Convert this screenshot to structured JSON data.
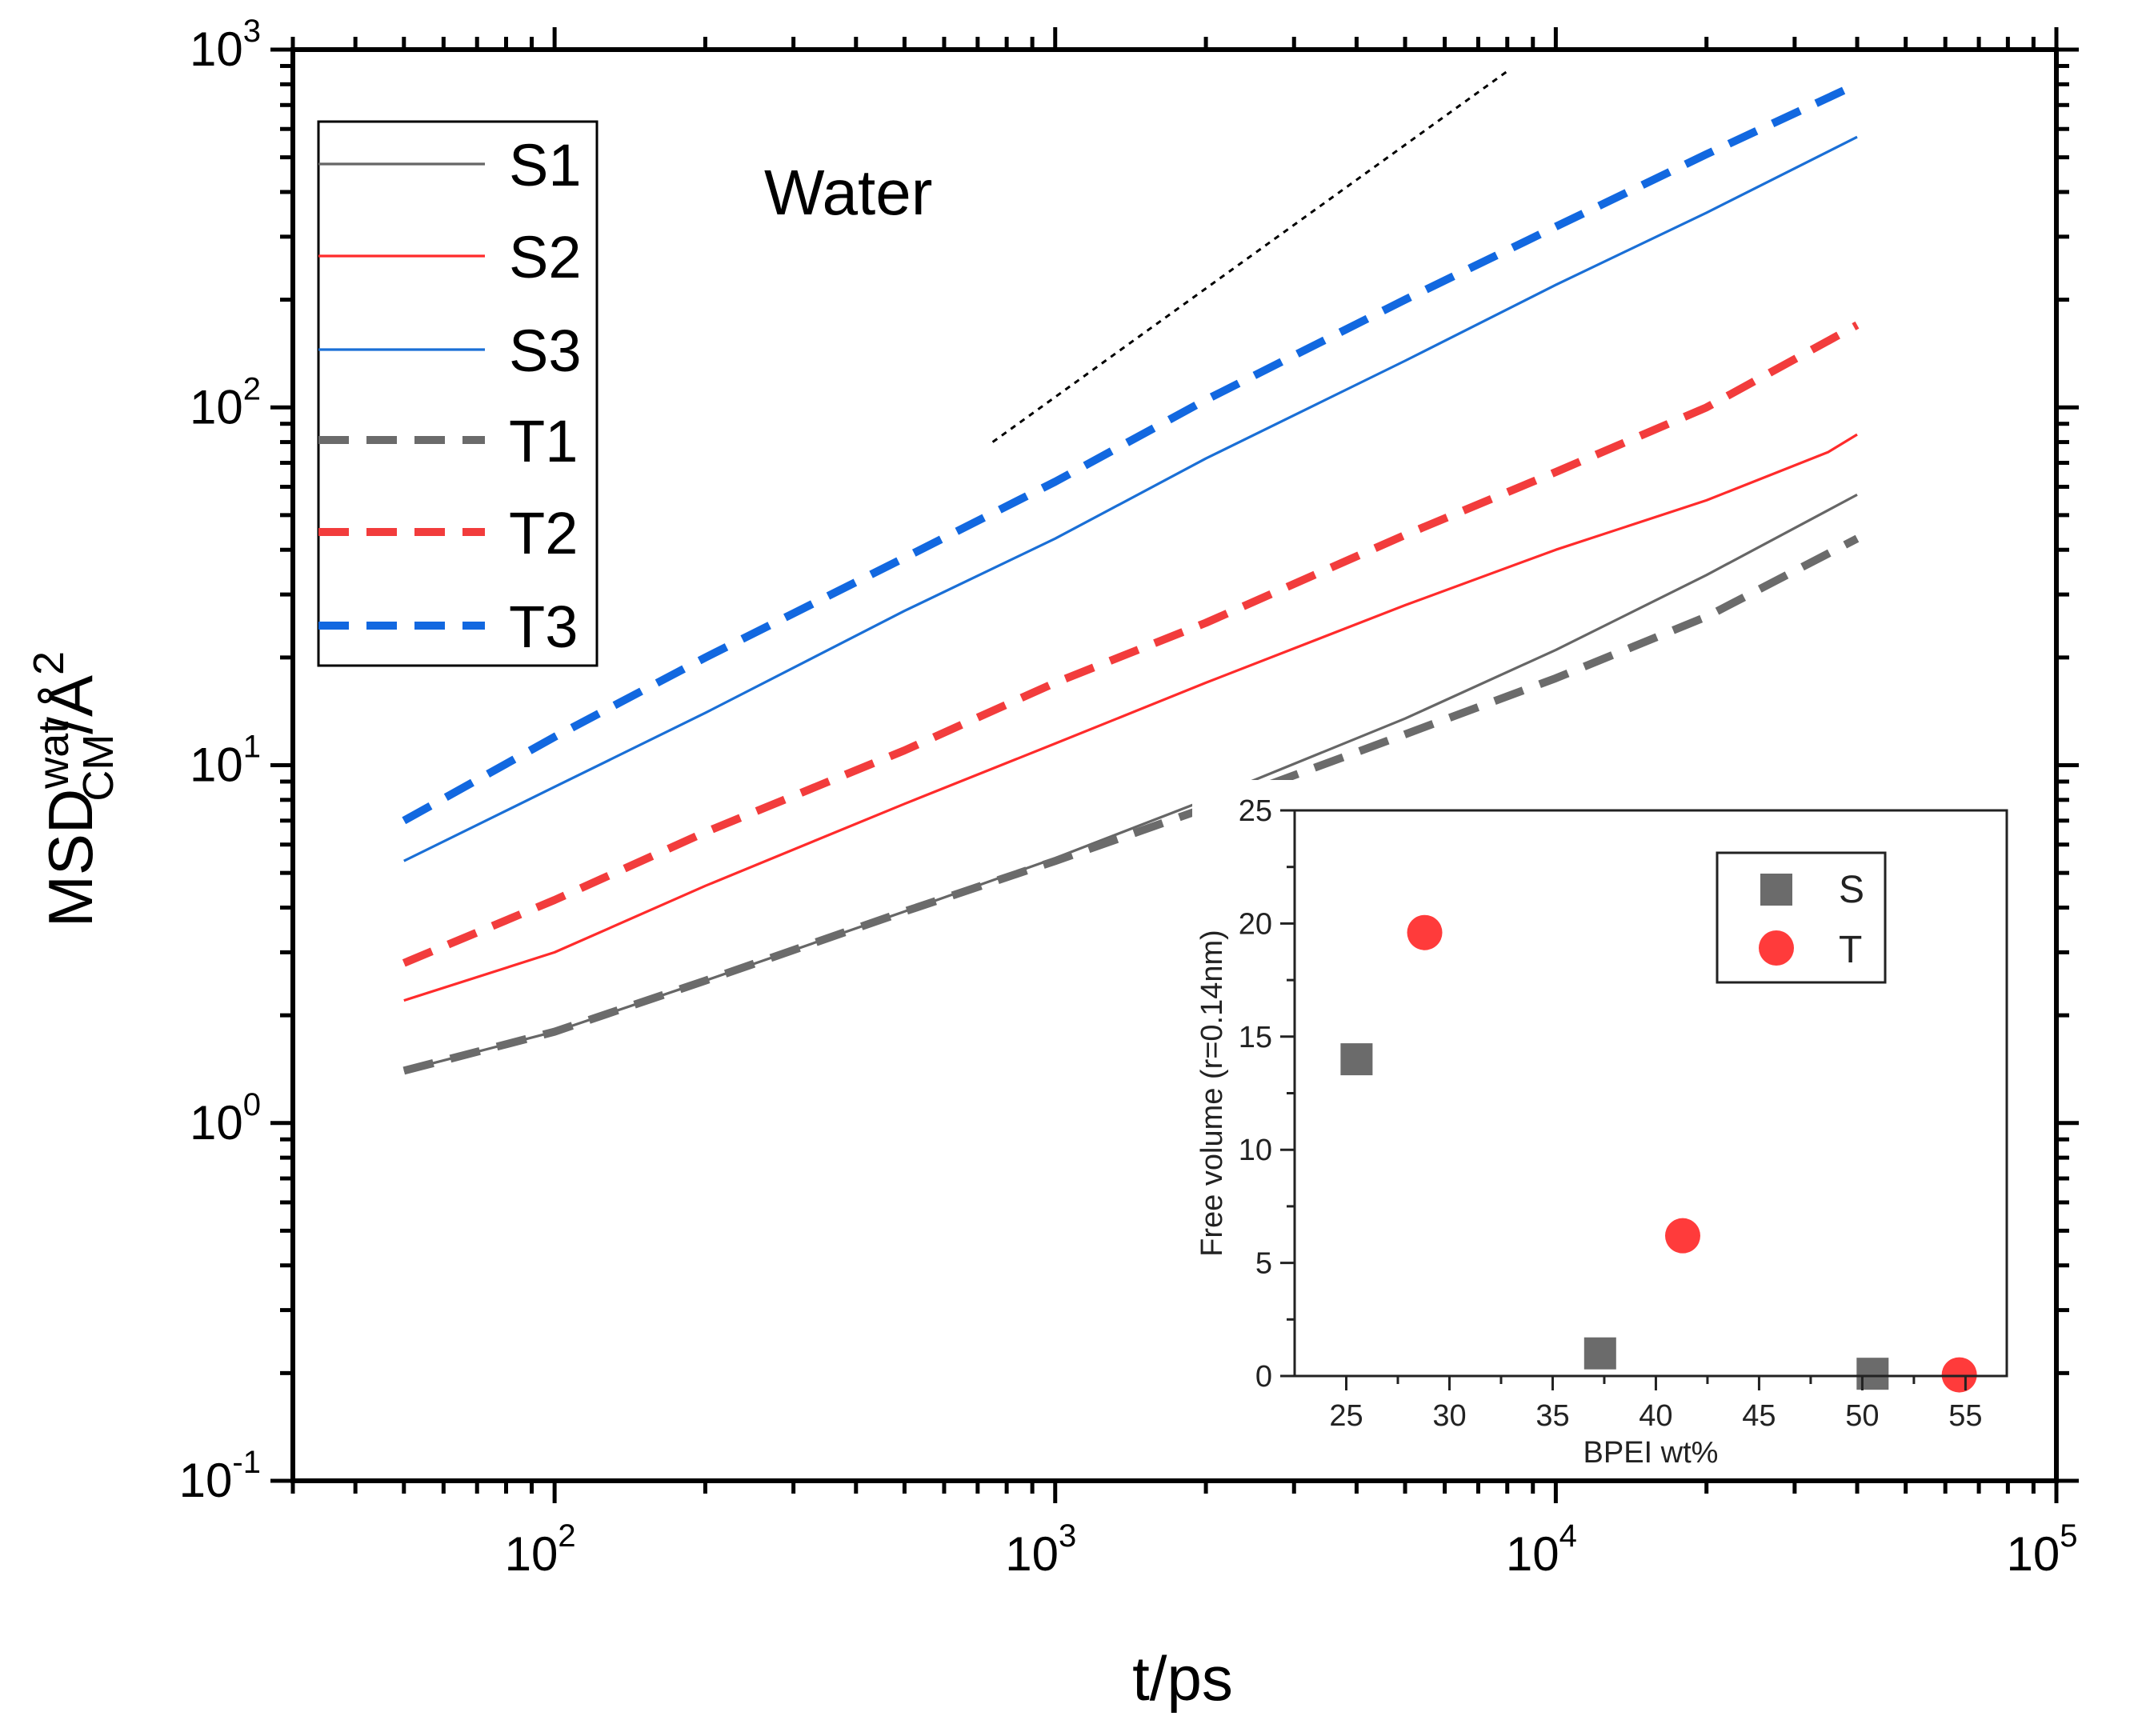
{
  "colors": {
    "S1": "#666666",
    "S2": "#ff2b2b",
    "S3": "#1a6fd6",
    "T1": "#6b6b6b",
    "T2": "#f23c3c",
    "T3": "#1268e0",
    "inset_S": "#6b6b6b",
    "inset_T": "#ff3b3b"
  },
  "annotation": "Water",
  "chart_data": [
    {
      "type": "line",
      "scale": "log-log",
      "xlabel": "t/ps",
      "ylabel": "MSD",
      "ylabel_sup": "wat",
      "ylabel_sub": "CM",
      "ylabel_unit": "/Å",
      "ylabel_unit_sup": "2",
      "xlim": [
        30,
        100000
      ],
      "ylim": [
        0.1,
        1000
      ],
      "x_ticks": [
        {
          "base": "10",
          "exp": "2",
          "value": 100
        },
        {
          "base": "10",
          "exp": "3",
          "value": 1000
        },
        {
          "base": "10",
          "exp": "4",
          "value": 10000
        },
        {
          "base": "10",
          "exp": "5",
          "value": 100000
        }
      ],
      "y_ticks": [
        {
          "base": "10",
          "exp": "-1",
          "value": 0.1
        },
        {
          "base": "10",
          "exp": "0",
          "value": 1
        },
        {
          "base": "10",
          "exp": "1",
          "value": 10
        },
        {
          "base": "10",
          "exp": "2",
          "value": 100
        },
        {
          "base": "10",
          "exp": "3",
          "value": 1000
        }
      ],
      "series": [
        {
          "name": "S1",
          "style": "solid",
          "x": [
            50,
            100,
            200,
            500,
            1000,
            2000,
            5000,
            10000,
            20000,
            40000
          ],
          "y": [
            1.4,
            1.8,
            2.5,
            3.9,
            5.5,
            8.0,
            13.5,
            21,
            34,
            57
          ]
        },
        {
          "name": "S2",
          "style": "solid",
          "x": [
            50,
            100,
            200,
            500,
            1000,
            2000,
            5000,
            10000,
            20000,
            35000,
            40000
          ],
          "y": [
            2.2,
            3.0,
            4.6,
            7.8,
            11.5,
            17,
            28,
            40,
            55,
            75,
            84
          ]
        },
        {
          "name": "S3",
          "style": "solid",
          "x": [
            50,
            100,
            200,
            500,
            1000,
            2000,
            5000,
            10000,
            20000,
            40000
          ],
          "y": [
            5.4,
            8.7,
            14,
            27,
            43,
            72,
            135,
            220,
            350,
            570
          ]
        },
        {
          "name": "T1",
          "style": "dashed",
          "x": [
            50,
            100,
            200,
            500,
            1000,
            2000,
            5000,
            10000,
            20000,
            40000
          ],
          "y": [
            1.4,
            1.8,
            2.5,
            3.9,
            5.4,
            7.6,
            12.2,
            17.5,
            26,
            43
          ]
        },
        {
          "name": "T2",
          "style": "dashed",
          "x": [
            50,
            100,
            200,
            500,
            1000,
            2000,
            5000,
            10000,
            20000,
            40000
          ],
          "y": [
            2.8,
            4.2,
            6.5,
            11,
            17,
            25,
            44,
            66,
            100,
            170
          ]
        },
        {
          "name": "T3",
          "style": "dashed",
          "x": [
            50,
            100,
            200,
            500,
            1000,
            2000,
            5000,
            10000,
            20000,
            40000
          ],
          "y": [
            7,
            12,
            20,
            38,
            62,
            105,
            200,
            320,
            510,
            800
          ]
        }
      ],
      "reference_line": {
        "style": "dotted",
        "x": [
          750,
          8000
        ],
        "y": [
          80,
          870
        ]
      },
      "legend": [
        "S1",
        "S2",
        "S3",
        "T1",
        "T2",
        "T3"
      ],
      "legend_position": "top-left"
    },
    {
      "type": "scatter",
      "xlabel": "BPEI wt%",
      "ylabel": "Free volume (r=0.14nm)",
      "xlim": [
        22.5,
        57
      ],
      "ylim": [
        0,
        25
      ],
      "x_ticks": [
        "25",
        "30",
        "35",
        "40",
        "45",
        "50",
        "55"
      ],
      "y_ticks": [
        "0",
        "5",
        "10",
        "15",
        "20",
        "25"
      ],
      "series": [
        {
          "name": "S",
          "marker": "square",
          "x": [
            25.5,
            37.3,
            50.5
          ],
          "y": [
            14,
            1.0,
            0.1
          ]
        },
        {
          "name": "T",
          "marker": "circle",
          "x": [
            28.8,
            41.3,
            54.7
          ],
          "y": [
            19.6,
            6.2,
            0.05
          ]
        }
      ],
      "legend": [
        "S",
        "T"
      ],
      "legend_position": "top-right"
    }
  ]
}
